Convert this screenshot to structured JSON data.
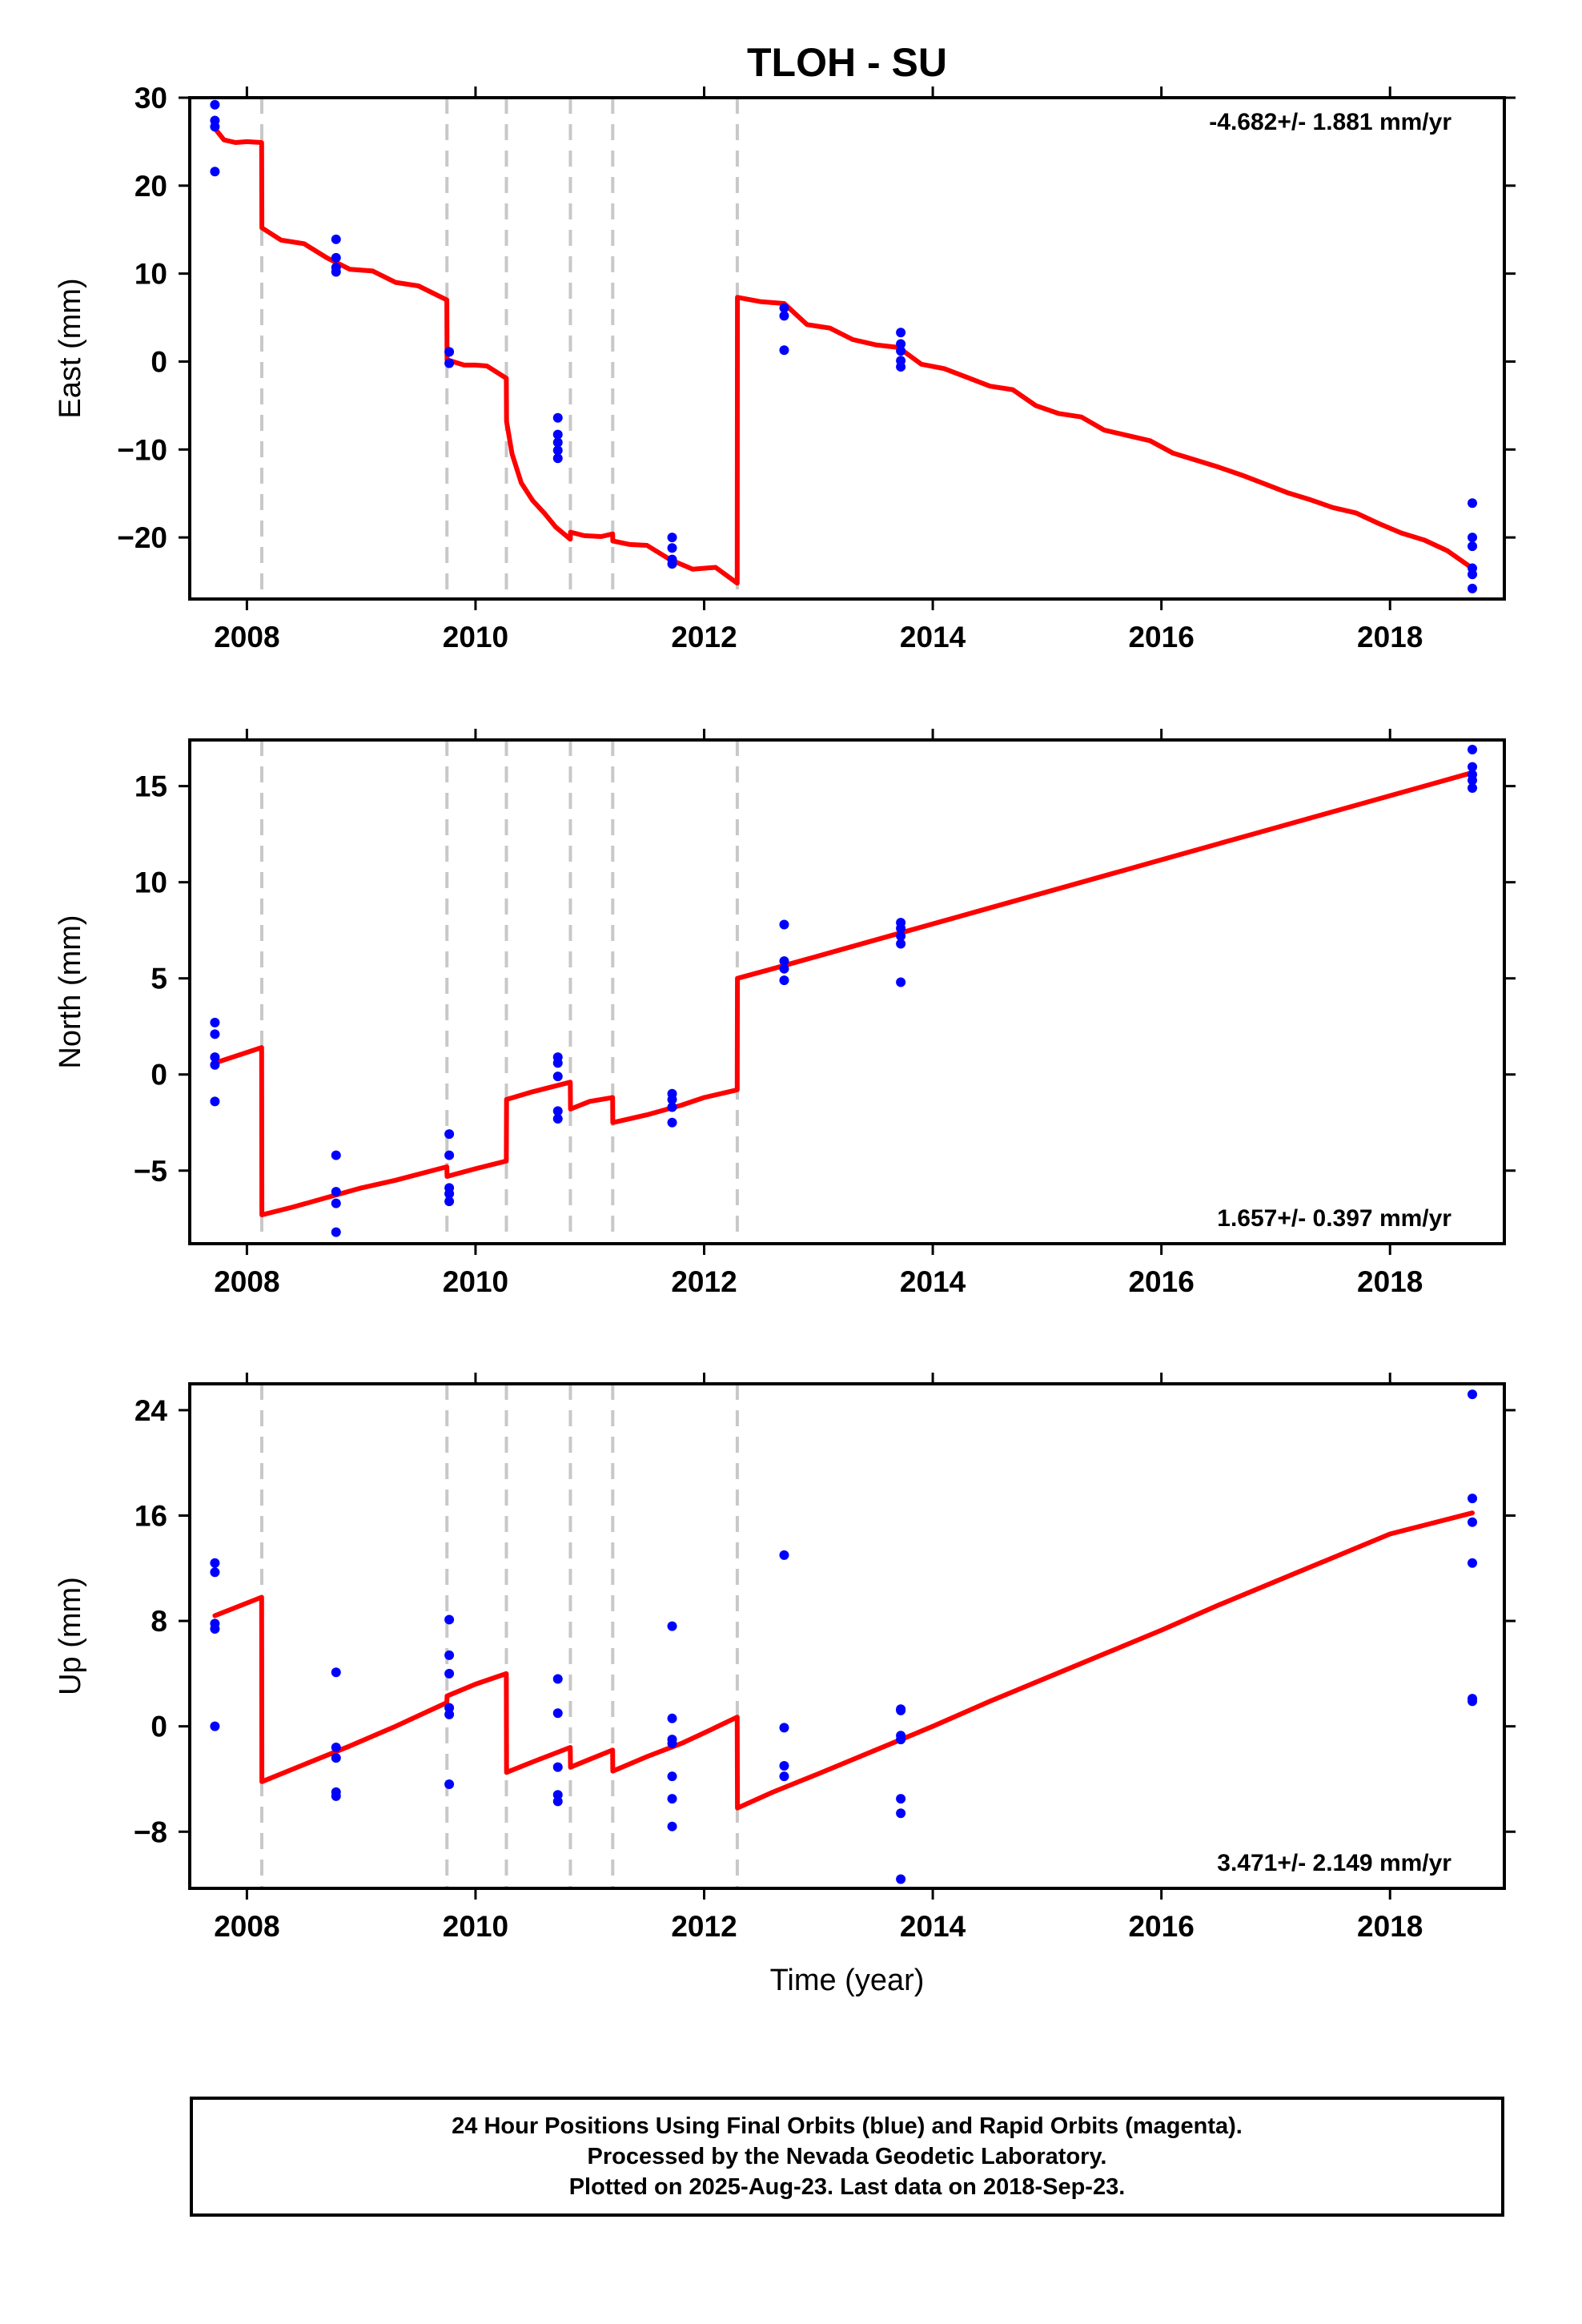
{
  "title": "TLOH - SU",
  "xlabel": "Time (year)",
  "colors": {
    "model": "#ff0000",
    "final_orbits": "#0000ff",
    "steps": "#c8c8c8",
    "frame": "#000000"
  },
  "footer": [
    "24 Hour Positions Using Final Orbits (blue) and Rapid Orbits (magenta).",
    "Processed by the Nevada Geodetic Laboratory.",
    "Plotted on 2025-Aug-23. Last data on 2018-Sep-23."
  ],
  "chart_data": [
    {
      "type": "scatter",
      "ylabel": "East (mm)",
      "rate_label": "-4.682+/- 1.881 mm/yr",
      "rate_position": "top-right",
      "xlim": [
        2007.5,
        2019.0
      ],
      "ylim": [
        -27,
        30
      ],
      "xticks": [
        2008,
        2010,
        2012,
        2014,
        2016,
        2018
      ],
      "xtick_labels": [
        "2008",
        "2010",
        "2012",
        "2014",
        "2016",
        "2018"
      ],
      "yticks": [
        30,
        20,
        10,
        0,
        -10,
        -20
      ],
      "ytick_labels": [
        "30",
        "20",
        "10",
        "0",
        "−10",
        "−20"
      ],
      "steps": [
        2008.13,
        2009.75,
        2010.27,
        2010.83,
        2011.2,
        2012.29
      ],
      "series": [
        {
          "kind": "points",
          "x": [
            2007.72,
            2007.72,
            2007.72,
            2007.72,
            2008.78,
            2008.78,
            2008.78,
            2008.78,
            2009.77,
            2009.77,
            2010.72,
            2010.72,
            2010.72,
            2010.72,
            2010.72,
            2011.72,
            2011.72,
            2011.72,
            2011.72,
            2012.7,
            2012.7,
            2012.7,
            2013.72,
            2013.72,
            2013.72,
            2013.72,
            2013.72,
            2018.72,
            2018.72,
            2018.72,
            2018.72,
            2018.72,
            2018.72
          ],
          "y": [
            29.2,
            27.4,
            26.7,
            21.6,
            13.9,
            11.8,
            10.7,
            10.2,
            1.1,
            -0.2,
            -6.4,
            -8.3,
            -9.2,
            -10.1,
            -11.0,
            -20.0,
            -21.2,
            -22.5,
            -23.0,
            6.1,
            5.2,
            1.3,
            3.3,
            2.0,
            1.2,
            0.1,
            -0.6,
            -16.1,
            -20.0,
            -21.0,
            -23.5,
            -24.2,
            -25.8
          ]
        },
        {
          "kind": "model",
          "x": [
            2007.72,
            2007.8,
            2007.9,
            2008.0,
            2008.129,
            2008.131,
            2008.3,
            2008.5,
            2008.7,
            2008.9,
            2009.1,
            2009.3,
            2009.5,
            2009.749,
            2009.751,
            2009.9,
            2010.0,
            2010.1,
            2010.269,
            2010.271,
            2010.32,
            2010.4,
            2010.5,
            2010.6,
            2010.7,
            2010.829,
            2010.831,
            2010.95,
            2011.1,
            2011.199,
            2011.201,
            2011.35,
            2011.5,
            2011.7,
            2011.9,
            2012.1,
            2012.289,
            2012.291,
            2012.5,
            2012.7,
            2012.9,
            2013.1,
            2013.3,
            2013.5,
            2013.7,
            2013.9,
            2014.1,
            2014.3,
            2014.5,
            2014.7,
            2014.9,
            2015.1,
            2015.3,
            2015.5,
            2015.7,
            2015.9,
            2016.1,
            2016.3,
            2016.5,
            2016.7,
            2016.9,
            2017.1,
            2017.3,
            2017.5,
            2017.7,
            2017.9,
            2018.1,
            2018.3,
            2018.5,
            2018.72
          ],
          "y": [
            26.5,
            25.2,
            24.9,
            25.0,
            24.9,
            15.2,
            13.8,
            13.4,
            11.8,
            10.5,
            10.3,
            9.0,
            8.6,
            7.0,
            0.2,
            -0.4,
            -0.4,
            -0.5,
            -1.9,
            -6.8,
            -10.5,
            -13.8,
            -15.8,
            -17.2,
            -18.8,
            -20.2,
            -19.4,
            -19.8,
            -19.9,
            -19.6,
            -20.4,
            -20.8,
            -20.9,
            -22.5,
            -23.6,
            -23.4,
            -25.2,
            7.3,
            6.8,
            6.6,
            4.2,
            3.8,
            2.5,
            1.9,
            1.6,
            -0.3,
            -0.8,
            -1.8,
            -2.8,
            -3.2,
            -5.0,
            -5.9,
            -6.3,
            -7.8,
            -8.4,
            -9.0,
            -10.4,
            -11.2,
            -12.0,
            -12.9,
            -13.9,
            -14.9,
            -15.7,
            -16.6,
            -17.2,
            -18.4,
            -19.5,
            -20.3,
            -21.5,
            -23.5
          ]
        }
      ]
    },
    {
      "type": "scatter",
      "ylabel": "North (mm)",
      "rate_label": "1.657+/- 0.397 mm/yr",
      "rate_position": "bottom-right",
      "xlim": [
        2007.5,
        2019.0
      ],
      "ylim": [
        -8.8,
        17.4
      ],
      "xticks": [
        2008,
        2010,
        2012,
        2014,
        2016,
        2018
      ],
      "xtick_labels": [
        "2008",
        "2010",
        "2012",
        "2014",
        "2016",
        "2018"
      ],
      "yticks": [
        15,
        10,
        5,
        0,
        -5
      ],
      "ytick_labels": [
        "15",
        "10",
        "5",
        "0",
        "−5"
      ],
      "steps": [
        2008.13,
        2009.75,
        2010.27,
        2010.83,
        2011.2,
        2012.29
      ],
      "series": [
        {
          "kind": "points",
          "x": [
            2007.72,
            2007.72,
            2007.72,
            2007.72,
            2007.72,
            2008.78,
            2008.78,
            2008.78,
            2008.78,
            2009.77,
            2009.77,
            2009.77,
            2009.77,
            2009.77,
            2010.72,
            2010.72,
            2010.72,
            2010.72,
            2010.72,
            2011.72,
            2011.72,
            2011.72,
            2011.72,
            2012.7,
            2012.7,
            2012.7,
            2012.7,
            2013.72,
            2013.72,
            2013.72,
            2013.72,
            2013.72,
            2018.72,
            2018.72,
            2018.72,
            2018.72,
            2018.72
          ],
          "y": [
            2.7,
            2.1,
            0.9,
            0.5,
            -1.4,
            -4.2,
            -6.1,
            -6.7,
            -8.2,
            -3.1,
            -4.2,
            -5.9,
            -6.2,
            -6.6,
            0.9,
            0.6,
            -0.1,
            -1.9,
            -2.3,
            -1.0,
            -1.3,
            -1.7,
            -2.5,
            7.8,
            5.9,
            5.5,
            4.9,
            7.9,
            7.6,
            7.2,
            6.8,
            4.8,
            16.9,
            16.0,
            15.6,
            15.3,
            14.9
          ]
        },
        {
          "kind": "model",
          "x": [
            2007.72,
            2008.129,
            2008.131,
            2008.4,
            2008.7,
            2009.0,
            2009.3,
            2009.749,
            2009.751,
            2010.0,
            2010.269,
            2010.271,
            2010.5,
            2010.829,
            2010.831,
            2011.0,
            2011.199,
            2011.201,
            2011.5,
            2011.8,
            2012.0,
            2012.289,
            2012.291,
            2012.6,
            2012.9,
            2013.2,
            2013.5,
            2013.8,
            2014.1,
            2014.4,
            2014.7,
            2015.0,
            2015.3,
            2015.6,
            2015.9,
            2016.2,
            2016.5,
            2016.8,
            2017.1,
            2017.4,
            2017.7,
            2018.0,
            2018.3,
            2018.72
          ],
          "y": [
            0.6,
            1.4,
            -7.3,
            -6.9,
            -6.4,
            -5.9,
            -5.5,
            -4.8,
            -5.3,
            -4.9,
            -4.5,
            -1.3,
            -0.9,
            -0.4,
            -1.8,
            -1.4,
            -1.2,
            -2.5,
            -2.1,
            -1.6,
            -1.2,
            -0.8,
            5.0,
            5.5,
            6.0,
            6.5,
            7.0,
            7.5,
            8.0,
            8.5,
            9.0,
            9.5,
            10.0,
            10.5,
            11.0,
            11.5,
            12.0,
            12.5,
            13.0,
            13.5,
            14.0,
            14.5,
            15.0,
            15.7
          ]
        }
      ]
    },
    {
      "type": "scatter",
      "ylabel": "Up (mm)",
      "rate_label": "3.471+/- 2.149 mm/yr",
      "rate_position": "bottom-right",
      "xlim": [
        2007.5,
        2019.0
      ],
      "ylim": [
        -12.3,
        26
      ],
      "xticks": [
        2008,
        2010,
        2012,
        2014,
        2016,
        2018
      ],
      "xtick_labels": [
        "2008",
        "2010",
        "2012",
        "2014",
        "2016",
        "2018"
      ],
      "yticks": [
        24,
        16,
        8,
        0,
        -8
      ],
      "ytick_labels": [
        "24",
        "16",
        "8",
        "0",
        "−8"
      ],
      "steps": [
        2008.13,
        2009.75,
        2010.27,
        2010.83,
        2011.2,
        2012.29
      ],
      "series": [
        {
          "kind": "points",
          "x": [
            2007.72,
            2007.72,
            2007.72,
            2007.72,
            2007.72,
            2008.78,
            2008.78,
            2008.78,
            2008.78,
            2008.78,
            2009.77,
            2009.77,
            2009.77,
            2009.77,
            2009.77,
            2009.77,
            2010.72,
            2010.72,
            2010.72,
            2010.72,
            2010.72,
            2011.72,
            2011.72,
            2011.72,
            2011.72,
            2011.72,
            2011.72,
            2011.72,
            2012.7,
            2012.7,
            2012.7,
            2012.7,
            2013.72,
            2013.72,
            2013.72,
            2013.72,
            2013.72,
            2013.72,
            2013.72,
            2018.72,
            2018.72,
            2018.72,
            2018.72,
            2018.72,
            2018.72
          ],
          "y": [
            12.4,
            11.7,
            7.8,
            7.4,
            0.0,
            4.1,
            -1.6,
            -2.4,
            -5.0,
            -5.3,
            8.1,
            5.4,
            4.0,
            1.4,
            0.9,
            -4.4,
            3.6,
            1.0,
            -3.1,
            -5.2,
            -5.7,
            7.6,
            0.6,
            -1.0,
            -1.3,
            -3.8,
            -5.5,
            -7.6,
            13.0,
            -0.1,
            -3.0,
            -3.8,
            1.3,
            1.2,
            -0.7,
            -1.0,
            -5.5,
            -6.6,
            -11.6,
            25.2,
            17.3,
            15.5,
            12.4,
            2.1,
            1.9
          ]
        },
        {
          "kind": "model",
          "x": [
            2007.72,
            2008.129,
            2008.131,
            2008.5,
            2008.9,
            2009.3,
            2009.749,
            2009.751,
            2010.0,
            2010.269,
            2010.271,
            2010.5,
            2010.829,
            2010.831,
            2011.0,
            2011.199,
            2011.201,
            2011.5,
            2011.8,
            2012.0,
            2012.289,
            2012.291,
            2012.6,
            2013.0,
            2013.5,
            2014.0,
            2014.5,
            2015.0,
            2015.5,
            2016.0,
            2016.5,
            2017.0,
            2017.5,
            2018.0,
            2018.72
          ],
          "y": [
            8.4,
            9.8,
            -4.2,
            -2.9,
            -1.5,
            0.0,
            1.8,
            2.3,
            3.2,
            4.0,
            -3.5,
            -2.7,
            -1.6,
            -3.1,
            -2.5,
            -1.8,
            -3.4,
            -2.3,
            -1.3,
            -0.5,
            0.7,
            -6.2,
            -5.0,
            -3.6,
            -1.8,
            0.0,
            1.9,
            3.7,
            5.5,
            7.3,
            9.2,
            11.0,
            12.8,
            14.6,
            16.2
          ]
        }
      ]
    }
  ]
}
